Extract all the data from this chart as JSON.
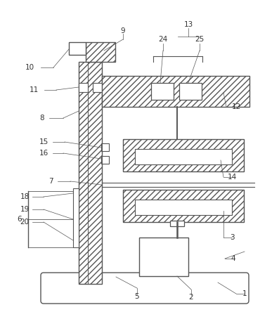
{
  "figure_size": [
    3.97,
    4.44
  ],
  "dpi": 100,
  "bg_color": "#ffffff",
  "ec": "#555555",
  "hatch_style": "////",
  "label_fontsize": 7.5,
  "label_color": "#333333",
  "line_color": "#555555",
  "line_lw": 0.5
}
